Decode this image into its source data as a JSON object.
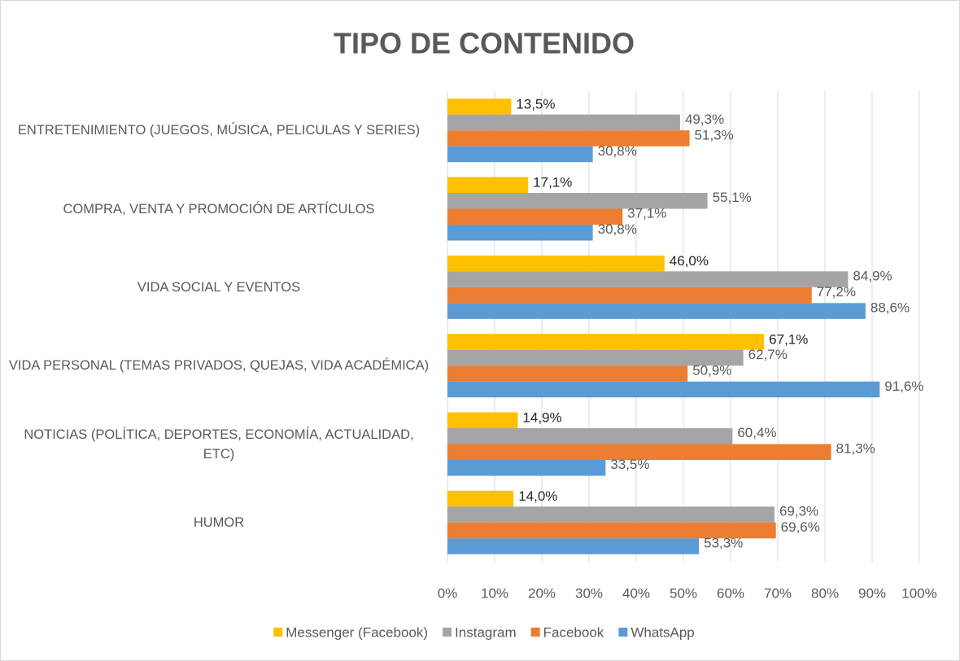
{
  "chart_data": {
    "type": "bar",
    "orientation": "horizontal",
    "title": "TIPO DE CONTENIDO",
    "categories": [
      "ENTRETENIMIENTO (JUEGOS, MÚSICA, PELICULAS Y SERIES)",
      "COMPRA, VENTA Y PROMOCIÓN DE ARTÍCULOS",
      "VIDA SOCIAL Y EVENTOS",
      "VIDA PERSONAL (TEMAS PRIVADOS, QUEJAS, VIDA ACADÉMICA)",
      "NOTICIAS (POLÍTICA, DEPORTES, ECONOMÍA, ACTUALIDAD, ETC)",
      "HUMOR"
    ],
    "series": [
      {
        "name": "Messenger (Facebook)",
        "color": "#ffc000",
        "values": [
          13.5,
          17.1,
          46.0,
          67.1,
          14.9,
          14.0
        ],
        "value_labels": [
          "13,5%",
          "17,1%",
          "46,0%",
          "67,1%",
          "14,9%",
          "14,0%"
        ]
      },
      {
        "name": "Instagram",
        "color": "#a5a5a5",
        "values": [
          49.3,
          55.1,
          84.9,
          62.7,
          60.4,
          69.3
        ],
        "value_labels": [
          "49,3%",
          "55,1%",
          "84,9%",
          "62,7%",
          "60,4%",
          "69,3%"
        ]
      },
      {
        "name": "Facebook",
        "color": "#ed7d31",
        "values": [
          51.3,
          37.1,
          77.2,
          50.9,
          81.3,
          69.6
        ],
        "value_labels": [
          "51,3%",
          "37,1%",
          "77,2%",
          "50,9%",
          "81,3%",
          "69,6%"
        ]
      },
      {
        "name": "WhatsApp",
        "color": "#5b9bd5",
        "values": [
          30.8,
          30.8,
          88.6,
          91.6,
          33.5,
          53.3
        ],
        "value_labels": [
          "30,8%",
          "30,8%",
          "88,6%",
          "91,6%",
          "33,5%",
          "53,3%"
        ]
      }
    ],
    "xlim": [
      0,
      100
    ],
    "xticks": [
      {
        "value": 0,
        "label": "0%"
      },
      {
        "value": 10,
        "label": "10%"
      },
      {
        "value": 20,
        "label": "20%"
      },
      {
        "value": 30,
        "label": "30%"
      },
      {
        "value": 40,
        "label": "40%"
      },
      {
        "value": 50,
        "label": "50%"
      },
      {
        "value": 60,
        "label": "60%"
      },
      {
        "value": 70,
        "label": "70%"
      },
      {
        "value": 80,
        "label": "80%"
      },
      {
        "value": 90,
        "label": "90%"
      },
      {
        "value": 100,
        "label": "100%"
      }
    ],
    "grid": true,
    "legend": "bottom"
  }
}
